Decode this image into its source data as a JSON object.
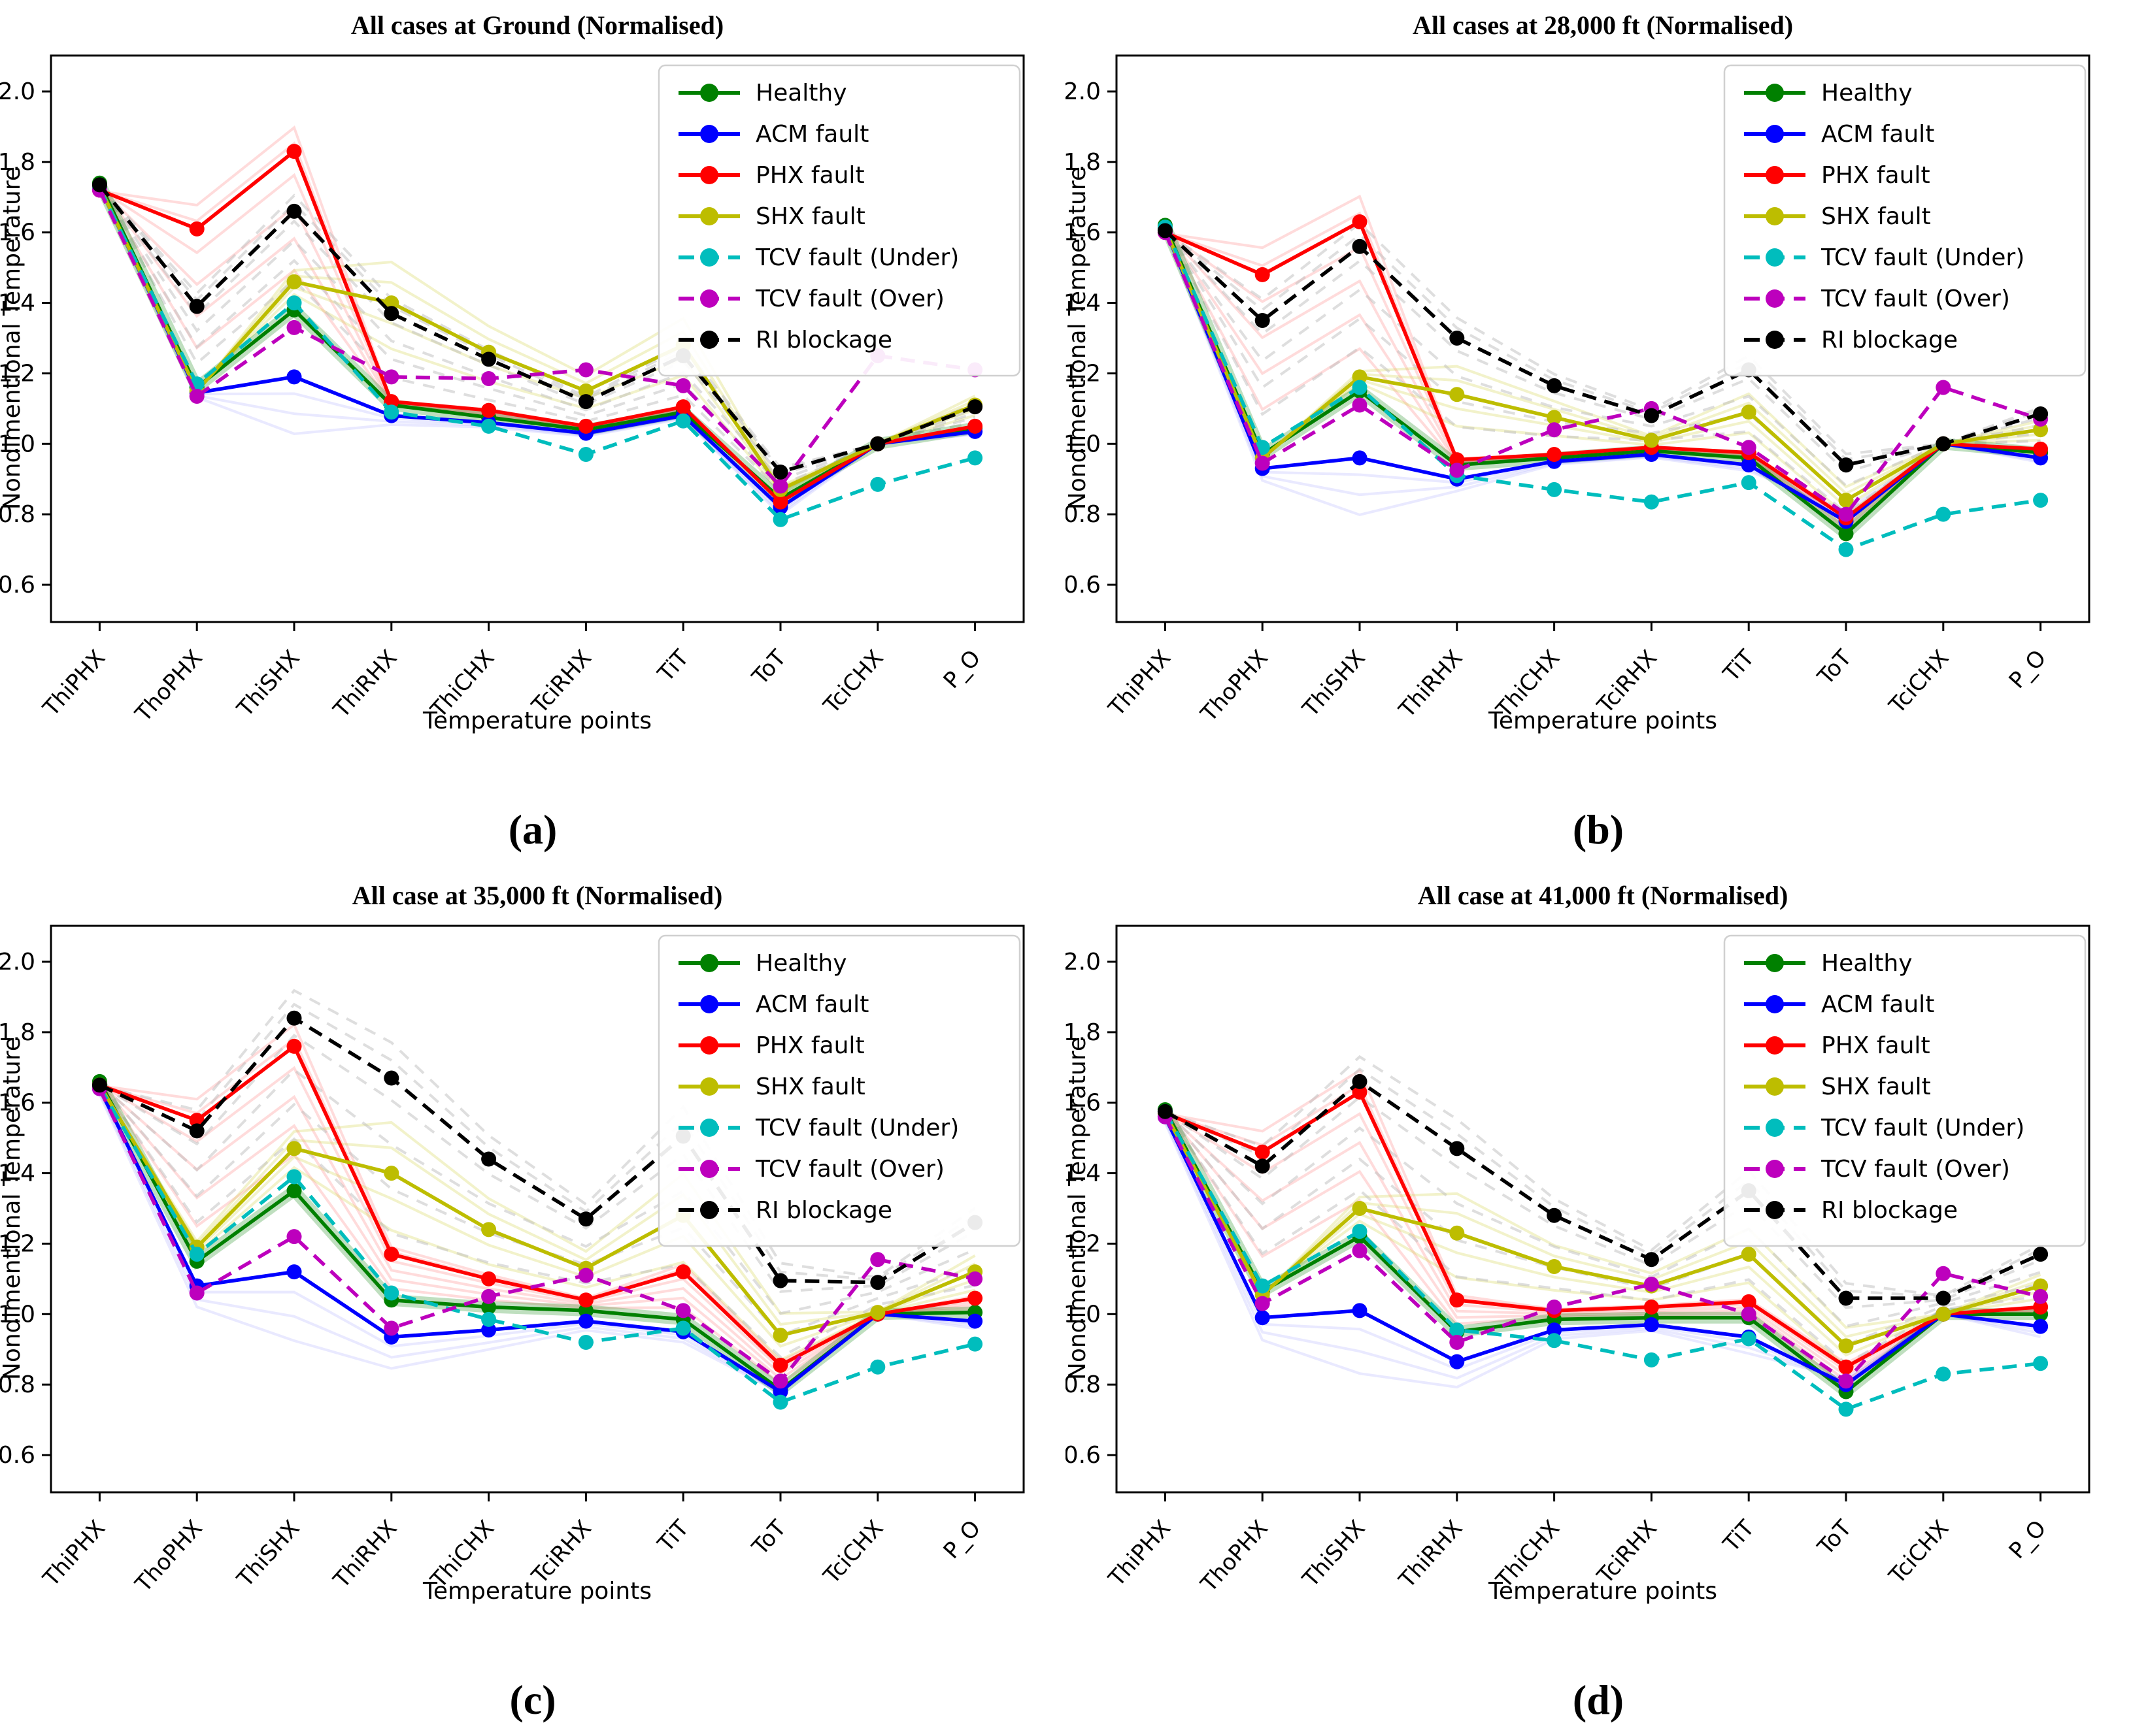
{
  "figure": {
    "background": "#ffffff",
    "ylabel_shared": "Nondimentional Temperature",
    "xlabel_shared": "Temperature points"
  },
  "rendering": {
    "accent_black": "#000000",
    "axis_color": "#000000",
    "legend_border": "#d0d0d0",
    "legend_background": "#ffffff",
    "halos": {
      "PHX fault": {
        "opacity": 0.14,
        "dashed": false,
        "factors": [
          0.25,
          0.45,
          0.65,
          0.85,
          1.05,
          1.15
        ]
      },
      "RI blockage": {
        "opacity": 0.5,
        "dashed": true,
        "color": "#bdbdbd",
        "factors": [
          0.3,
          0.5,
          0.7,
          0.9,
          1.08,
          1.16
        ]
      },
      "SHX fault": {
        "opacity": 0.28,
        "dashed": false,
        "color": "#cfcf40",
        "factors": [
          0.55,
          0.8,
          1.2,
          1.4
        ]
      },
      "ACM fault": {
        "opacity": 0.22,
        "dashed": false,
        "color": "#9a9aff",
        "factors": [
          1.25,
          1.55,
          1.85
        ]
      }
    }
  },
  "chart_data": [
    {
      "id": "a",
      "type": "line",
      "caption": "(a)",
      "title": "All cases at Ground (Normalised)",
      "xlabel": "Temperature points",
      "ylabel": "Nondimentional Temperature",
      "legend_position": "upper right",
      "grid": false,
      "ylim": [
        0.49,
        2.1
      ],
      "yticks": [
        0.6,
        0.8,
        1.0,
        1.2,
        1.4,
        1.6,
        1.8,
        2.0
      ],
      "categories": [
        "ThiPHX",
        "ThoPHX",
        "ThiSHX",
        "ThiRHX",
        "ThiCHX",
        "TciRHX",
        "TiT",
        "ToT",
        "TciCHX",
        "P_O"
      ],
      "series": [
        {
          "name": "Healthy",
          "color": "#008000",
          "style": "solid",
          "values": [
            1.74,
            1.16,
            1.38,
            1.11,
            1.075,
            1.04,
            1.09,
            0.845,
            1.0,
            1.045
          ]
        },
        {
          "name": "ACM fault",
          "color": "#0000ff",
          "style": "solid",
          "values": [
            1.73,
            1.145,
            1.19,
            1.08,
            1.06,
            1.03,
            1.08,
            0.82,
            1.0,
            1.035
          ]
        },
        {
          "name": "PHX fault",
          "color": "#ff0000",
          "style": "solid",
          "values": [
            1.72,
            1.61,
            1.83,
            1.12,
            1.095,
            1.05,
            1.105,
            0.835,
            1.0,
            1.05
          ]
        },
        {
          "name": "SHX fault",
          "color": "#bdbd00",
          "style": "solid",
          "values": [
            1.73,
            1.15,
            1.46,
            1.4,
            1.26,
            1.15,
            1.28,
            0.87,
            1.0,
            1.11
          ]
        },
        {
          "name": "TCV fault (Under)",
          "color": "#00bdbd",
          "style": "dashed",
          "values": [
            1.725,
            1.17,
            1.4,
            1.09,
            1.05,
            0.97,
            1.065,
            0.785,
            0.885,
            0.96
          ]
        },
        {
          "name": "TCV fault (Over)",
          "color": "#bd00bd",
          "style": "dashed",
          "values": [
            1.72,
            1.135,
            1.33,
            1.19,
            1.185,
            1.21,
            1.165,
            0.88,
            1.25,
            1.21
          ]
        },
        {
          "name": "RI blockage",
          "color": "#000000",
          "style": "dashed",
          "values": [
            1.735,
            1.39,
            1.66,
            1.37,
            1.24,
            1.12,
            1.25,
            0.92,
            1.0,
            1.105
          ]
        }
      ]
    },
    {
      "id": "b",
      "type": "line",
      "caption": "(b)",
      "title": "All cases at 28,000 ft (Normalised)",
      "xlabel": "Temperature points",
      "ylabel": "Nondimentional Temperature",
      "legend_position": "upper right",
      "grid": false,
      "ylim": [
        0.49,
        2.1
      ],
      "yticks": [
        0.6,
        0.8,
        1.0,
        1.2,
        1.4,
        1.6,
        1.8,
        2.0
      ],
      "categories": [
        "ThiPHX",
        "ThoPHX",
        "ThiSHX",
        "ThiRHX",
        "ThiCHX",
        "TciRHX",
        "TiT",
        "ToT",
        "TciCHX",
        "P_O"
      ],
      "series": [
        {
          "name": "Healthy",
          "color": "#008000",
          "style": "solid",
          "values": [
            1.62,
            0.97,
            1.15,
            0.94,
            0.96,
            0.98,
            0.96,
            0.745,
            1.0,
            0.975
          ]
        },
        {
          "name": "ACM fault",
          "color": "#0000ff",
          "style": "solid",
          "values": [
            1.61,
            0.93,
            0.96,
            0.9,
            0.95,
            0.97,
            0.94,
            0.78,
            1.0,
            0.96
          ]
        },
        {
          "name": "PHX fault",
          "color": "#ff0000",
          "style": "solid",
          "values": [
            1.6,
            1.48,
            1.63,
            0.955,
            0.97,
            0.99,
            0.975,
            0.79,
            1.0,
            0.985
          ]
        },
        {
          "name": "SHX fault",
          "color": "#bdbd00",
          "style": "solid",
          "values": [
            1.61,
            0.96,
            1.19,
            1.14,
            1.075,
            1.01,
            1.09,
            0.84,
            1.0,
            1.04
          ]
        },
        {
          "name": "TCV fault (Under)",
          "color": "#00bdbd",
          "style": "dashed",
          "values": [
            1.615,
            0.99,
            1.16,
            0.91,
            0.87,
            0.835,
            0.89,
            0.7,
            0.8,
            0.84
          ]
        },
        {
          "name": "TCV fault (Over)",
          "color": "#bd00bd",
          "style": "dashed",
          "values": [
            1.6,
            0.945,
            1.11,
            0.925,
            1.04,
            1.1,
            0.99,
            0.8,
            1.16,
            1.07
          ]
        },
        {
          "name": "RI blockage",
          "color": "#000000",
          "style": "dashed",
          "values": [
            1.605,
            1.35,
            1.56,
            1.3,
            1.165,
            1.08,
            1.21,
            0.94,
            1.0,
            1.085
          ]
        }
      ]
    },
    {
      "id": "c",
      "type": "line",
      "caption": "(c)",
      "title": "All case at 35,000 ft (Normalised)",
      "xlabel": "Temperature points",
      "ylabel": "Nondimentional Temperature",
      "legend_position": "upper right",
      "grid": false,
      "ylim": [
        0.49,
        2.1
      ],
      "yticks": [
        0.6,
        0.8,
        1.0,
        1.2,
        1.4,
        1.6,
        1.8,
        2.0
      ],
      "categories": [
        "ThiPHX",
        "ThoPHX",
        "ThiSHX",
        "ThiRHX",
        "ThiCHX",
        "TciRHX",
        "TiT",
        "ToT",
        "TciCHX",
        "P_O"
      ],
      "series": [
        {
          "name": "Healthy",
          "color": "#008000",
          "style": "solid",
          "values": [
            1.66,
            1.15,
            1.35,
            1.04,
            1.02,
            1.01,
            0.985,
            0.785,
            1.0,
            1.005
          ]
        },
        {
          "name": "ACM fault",
          "color": "#0000ff",
          "style": "solid",
          "values": [
            1.64,
            1.08,
            1.12,
            0.935,
            0.955,
            0.98,
            0.95,
            0.78,
            1.0,
            0.98
          ]
        },
        {
          "name": "PHX fault",
          "color": "#ff0000",
          "style": "solid",
          "values": [
            1.65,
            1.55,
            1.76,
            1.17,
            1.1,
            1.04,
            1.12,
            0.855,
            1.0,
            1.045
          ]
        },
        {
          "name": "SHX fault",
          "color": "#bdbd00",
          "style": "solid",
          "values": [
            1.65,
            1.19,
            1.47,
            1.4,
            1.24,
            1.13,
            1.28,
            0.94,
            1.005,
            1.12
          ]
        },
        {
          "name": "TCV fault (Under)",
          "color": "#00bdbd",
          "style": "dashed",
          "values": [
            1.645,
            1.17,
            1.39,
            1.06,
            0.985,
            0.92,
            0.96,
            0.75,
            0.85,
            0.915
          ]
        },
        {
          "name": "TCV fault (Over)",
          "color": "#bd00bd",
          "style": "dashed",
          "values": [
            1.64,
            1.06,
            1.22,
            0.96,
            1.05,
            1.11,
            1.01,
            0.81,
            1.155,
            1.1
          ]
        },
        {
          "name": "RI blockage",
          "color": "#000000",
          "style": "dashed",
          "values": [
            1.65,
            1.52,
            1.84,
            1.67,
            1.44,
            1.27,
            1.505,
            1.095,
            1.09,
            1.26
          ]
        }
      ]
    },
    {
      "id": "d",
      "type": "line",
      "caption": "(d)",
      "title": "All case at 41,000 ft (Normalised)",
      "xlabel": "Temperature points",
      "ylabel": "Nondimentional Temperature",
      "legend_position": "upper right",
      "grid": false,
      "ylim": [
        0.49,
        2.1
      ],
      "yticks": [
        0.6,
        0.8,
        1.0,
        1.2,
        1.4,
        1.6,
        1.8,
        2.0
      ],
      "categories": [
        "ThiPHX",
        "ThoPHX",
        "ThiSHX",
        "ThiRHX",
        "ThiCHX",
        "TciRHX",
        "TiT",
        "ToT",
        "TciCHX",
        "P_O"
      ],
      "series": [
        {
          "name": "Healthy",
          "color": "#008000",
          "style": "solid",
          "values": [
            1.58,
            1.065,
            1.22,
            0.95,
            0.985,
            0.99,
            0.99,
            0.78,
            1.0,
            1.0
          ]
        },
        {
          "name": "ACM fault",
          "color": "#0000ff",
          "style": "solid",
          "values": [
            1.56,
            0.99,
            1.01,
            0.865,
            0.955,
            0.97,
            0.935,
            0.8,
            1.0,
            0.965
          ]
        },
        {
          "name": "PHX fault",
          "color": "#ff0000",
          "style": "solid",
          "values": [
            1.57,
            1.46,
            1.63,
            1.04,
            1.01,
            1.02,
            1.035,
            0.85,
            1.0,
            1.02
          ]
        },
        {
          "name": "SHX fault",
          "color": "#bdbd00",
          "style": "solid",
          "values": [
            1.57,
            1.055,
            1.3,
            1.23,
            1.135,
            1.08,
            1.17,
            0.91,
            1.0,
            1.08
          ]
        },
        {
          "name": "TCV fault (Under)",
          "color": "#00bdbd",
          "style": "dashed",
          "values": [
            1.575,
            1.08,
            1.235,
            0.955,
            0.925,
            0.87,
            0.93,
            0.73,
            0.83,
            0.86
          ]
        },
        {
          "name": "TCV fault (Over)",
          "color": "#bd00bd",
          "style": "dashed",
          "values": [
            1.56,
            1.03,
            1.18,
            0.92,
            1.02,
            1.085,
            1.0,
            0.81,
            1.115,
            1.05
          ]
        },
        {
          "name": "RI blockage",
          "color": "#000000",
          "style": "dashed",
          "values": [
            1.575,
            1.42,
            1.66,
            1.47,
            1.28,
            1.155,
            1.35,
            1.045,
            1.045,
            1.17
          ]
        }
      ]
    }
  ]
}
